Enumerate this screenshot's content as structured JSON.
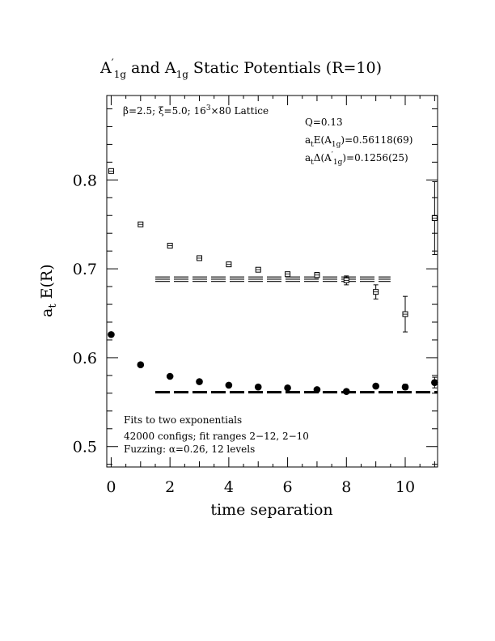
{
  "chart_data": {
    "type": "scatter",
    "title": "A′1g and A1g Static Potentials (R=10)",
    "title_parts": {
      "a": "A",
      "a_sup": "′",
      "sub": "1g",
      "mid": " and ",
      "b": "A",
      "b_sub": "1g",
      "rest": " Static Potentials (R=10)"
    },
    "xlabel": "time separation",
    "ylabel": "at E(R)",
    "ylabel_parts": {
      "a": "a",
      "a_sub": "t",
      "rest": " E(R)"
    },
    "xlim": [
      -0.15,
      11.1
    ],
    "ylim": [
      0.477,
      0.895
    ],
    "xticks": [
      0,
      2,
      4,
      6,
      8,
      10
    ],
    "xtick_labels": [
      "0",
      "2",
      "4",
      "6",
      "8",
      "10"
    ],
    "yticks": [
      0.5,
      0.6,
      0.7,
      0.8
    ],
    "ytick_labels": [
      "0.5",
      "0.6",
      "0.7",
      "0.8"
    ],
    "series": [
      {
        "marker": "open-square",
        "x": [
          0,
          1,
          2,
          3,
          4,
          5,
          6,
          7,
          8,
          9,
          10,
          11
        ],
        "y": [
          0.81,
          0.75,
          0.726,
          0.712,
          0.705,
          0.699,
          0.694,
          0.693,
          0.687,
          0.674,
          0.649,
          0.757
        ],
        "err": [
          0.001,
          0.001,
          0.001,
          0.001,
          0.001,
          0.001,
          0.002,
          0.003,
          0.005,
          0.008,
          0.02,
          0.041
        ]
      },
      {
        "marker": "filled-circle",
        "x": [
          0,
          1,
          2,
          3,
          4,
          5,
          6,
          7,
          8,
          9,
          10,
          11
        ],
        "y": [
          0.626,
          0.592,
          0.579,
          0.573,
          0.569,
          0.567,
          0.566,
          0.564,
          0.562,
          0.568,
          0.567,
          0.572
        ],
        "err": [
          0.001,
          0.001,
          0.001,
          0.001,
          0.001,
          0.001,
          0.001,
          0.001,
          0.002,
          0.002,
          0.003,
          0.006
        ]
      }
    ],
    "fit_lines": [
      {
        "x_range": [
          1.5,
          9.5
        ],
        "center": 0.6883,
        "err": 0.0025
      },
      {
        "x_range": [
          1.5,
          11.1
        ],
        "center": 0.5612,
        "err": 0.0007
      }
    ],
    "annotations": {
      "lattice_parts": {
        "beta": "β=2.5; ",
        "xi": "ξ=5.0; 16",
        "exp": "3",
        "rest": "×80 Lattice"
      },
      "q": "Q=0.13",
      "energy_parts": {
        "a": "a",
        "a_sub": "t",
        "mid": "E(A",
        "mid_sub": "1g",
        "rest": ")=0.56118(69)"
      },
      "gap_parts": {
        "a": "a",
        "a_sub": "t",
        "mid": "Δ(A",
        "mid_sup": "′",
        "mid_sub": "1g",
        "rest": ")=0.1256(25)"
      },
      "note1": "Fits to two exponentials",
      "note2": "42000 configs; fit ranges 2−12, 2−10",
      "note3_parts": {
        "a": "Fuzzing: ",
        "alpha": "α",
        "rest": "=0.26, 12 levels"
      }
    },
    "grid": false,
    "legend": "none"
  }
}
